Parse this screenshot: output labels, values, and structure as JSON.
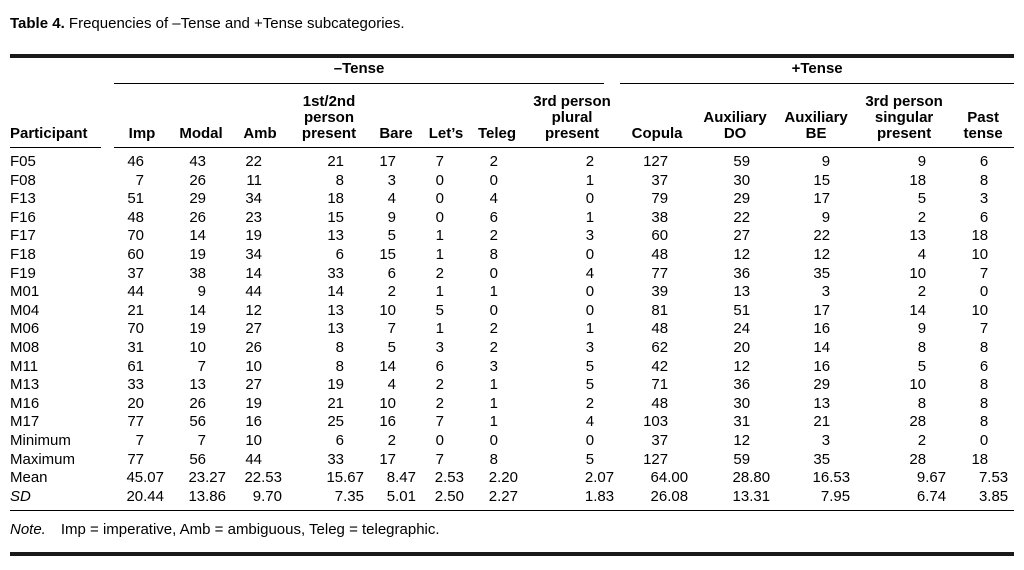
{
  "title": {
    "label": "Table 4.",
    "text": "Frequencies of –Tense and +Tense subcategories."
  },
  "table": {
    "group_headers": [
      {
        "label": "–Tense",
        "span": 8
      },
      {
        "label": "+Tense",
        "span": 5
      }
    ],
    "columns": [
      "Participant",
      "Imp",
      "Modal",
      "Amb",
      "1st/2nd person present",
      "Bare",
      "Let’s",
      "Teleg",
      "3rd person plural present",
      "Copula",
      "Auxiliary DO",
      "Auxiliary BE",
      "3rd person singular present",
      "Past tense"
    ],
    "rows": [
      {
        "label": "F05",
        "values": [
          "46",
          "43",
          "22",
          "21",
          "17",
          "7",
          "2",
          "2",
          "127",
          "59",
          "9",
          "9",
          "6"
        ]
      },
      {
        "label": "F08",
        "values": [
          "7",
          "26",
          "11",
          "8",
          "3",
          "0",
          "0",
          "1",
          "37",
          "30",
          "15",
          "18",
          "8"
        ]
      },
      {
        "label": "F13",
        "values": [
          "51",
          "29",
          "34",
          "18",
          "4",
          "0",
          "4",
          "0",
          "79",
          "29",
          "17",
          "5",
          "3"
        ]
      },
      {
        "label": "F16",
        "values": [
          "48",
          "26",
          "23",
          "15",
          "9",
          "0",
          "6",
          "1",
          "38",
          "22",
          "9",
          "2",
          "6"
        ]
      },
      {
        "label": "F17",
        "values": [
          "70",
          "14",
          "19",
          "13",
          "5",
          "1",
          "2",
          "3",
          "60",
          "27",
          "22",
          "13",
          "18"
        ]
      },
      {
        "label": "F18",
        "values": [
          "60",
          "19",
          "34",
          "6",
          "15",
          "1",
          "8",
          "0",
          "48",
          "12",
          "12",
          "4",
          "10"
        ]
      },
      {
        "label": "F19",
        "values": [
          "37",
          "38",
          "14",
          "33",
          "6",
          "2",
          "0",
          "4",
          "77",
          "36",
          "35",
          "10",
          "7"
        ]
      },
      {
        "label": "M01",
        "values": [
          "44",
          "9",
          "44",
          "14",
          "2",
          "1",
          "1",
          "0",
          "39",
          "13",
          "3",
          "2",
          "0"
        ]
      },
      {
        "label": "M04",
        "values": [
          "21",
          "14",
          "12",
          "13",
          "10",
          "5",
          "0",
          "0",
          "81",
          "51",
          "17",
          "14",
          "10"
        ]
      },
      {
        "label": "M06",
        "values": [
          "70",
          "19",
          "27",
          "13",
          "7",
          "1",
          "2",
          "1",
          "48",
          "24",
          "16",
          "9",
          "7"
        ]
      },
      {
        "label": "M08",
        "values": [
          "31",
          "10",
          "26",
          "8",
          "5",
          "3",
          "2",
          "3",
          "62",
          "20",
          "14",
          "8",
          "8"
        ]
      },
      {
        "label": "M11",
        "values": [
          "61",
          "7",
          "10",
          "8",
          "14",
          "6",
          "3",
          "5",
          "42",
          "12",
          "16",
          "5",
          "6"
        ]
      },
      {
        "label": "M13",
        "values": [
          "33",
          "13",
          "27",
          "19",
          "4",
          "2",
          "1",
          "5",
          "71",
          "36",
          "29",
          "10",
          "8"
        ]
      },
      {
        "label": "M16",
        "values": [
          "20",
          "26",
          "19",
          "21",
          "10",
          "2",
          "1",
          "2",
          "48",
          "30",
          "13",
          "8",
          "8"
        ]
      },
      {
        "label": "M17",
        "values": [
          "77",
          "56",
          "16",
          "25",
          "16",
          "7",
          "1",
          "4",
          "103",
          "31",
          "21",
          "28",
          "8"
        ]
      },
      {
        "label": "Minimum",
        "values": [
          "7",
          "7",
          "10",
          "6",
          "2",
          "0",
          "0",
          "0",
          "37",
          "12",
          "3",
          "2",
          "0"
        ]
      },
      {
        "label": "Maximum",
        "values": [
          "77",
          "56",
          "44",
          "33",
          "17",
          "7",
          "8",
          "5",
          "127",
          "59",
          "35",
          "28",
          "18"
        ]
      },
      {
        "label": "Mean",
        "decimal": true,
        "values": [
          "45.07",
          "23.27",
          "22.53",
          "15.67",
          "8.47",
          "2.53",
          "2.20",
          "2.07",
          "64.00",
          "28.80",
          "16.53",
          "9.67",
          "7.53"
        ]
      },
      {
        "label": "SD",
        "decimal": true,
        "italic": true,
        "values": [
          "20.44",
          "13.86",
          "9.70",
          "7.35",
          "5.01",
          "2.50",
          "2.27",
          "1.83",
          "26.08",
          "13.31",
          "7.95",
          "6.74",
          "3.85"
        ]
      }
    ]
  },
  "note": {
    "label": "Note.",
    "text": "Imp = imperative, Amb = ambiguous, Teleg = telegraphic."
  }
}
